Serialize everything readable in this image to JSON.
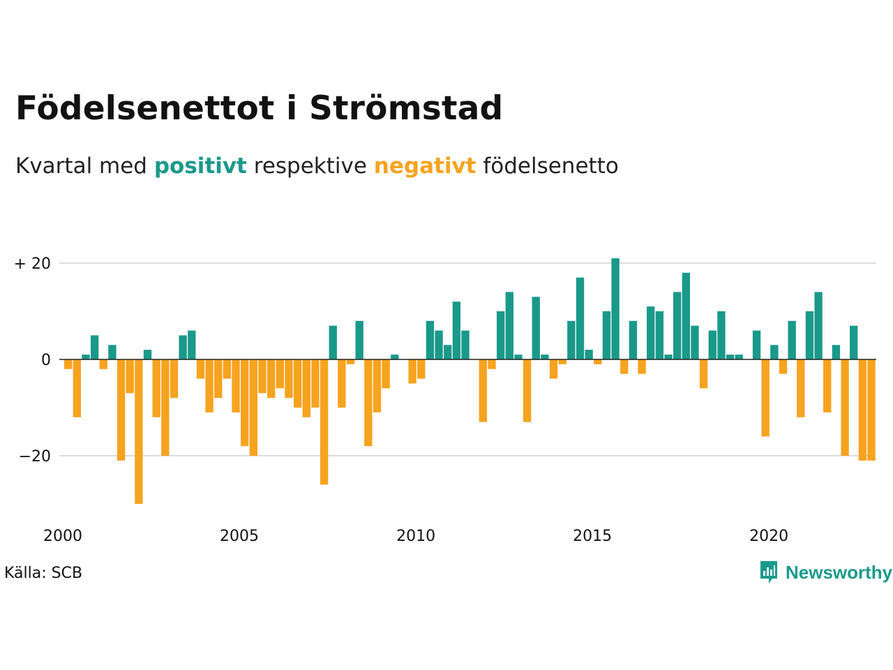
{
  "title": "Födelsenettot i Strömstad",
  "subtitle": {
    "prefix": "Kvartal med",
    "positive_word": "positivt",
    "middle": "respektive",
    "negative_word": "negativt",
    "suffix": "födelsenetto"
  },
  "colors": {
    "positive": "#1a998a",
    "negative": "#f6a31f",
    "grid": "#dcdcdc",
    "zero_line": "#222222",
    "brand": "#1a998a"
  },
  "source": "Källa: SCB",
  "brand": {
    "name": "Newsworthy",
    "icon": "bar-chart-speech-bubble-icon"
  },
  "chart_data": {
    "type": "bar",
    "title": "Födelsenettot i Strömstad",
    "subtitle": "Kvartal med positivt respektive negativt födelsenetto",
    "x_start": 2000,
    "x_step": 0.25,
    "xlim": [
      2000,
      2023
    ],
    "ylim": [
      -30,
      21
    ],
    "y_ticks": [
      {
        "value": 20,
        "label": "+ 20"
      },
      {
        "value": 0,
        "label": "0"
      },
      {
        "value": -20,
        "label": "−20"
      }
    ],
    "x_ticks": [
      {
        "value": 2000,
        "label": "2000"
      },
      {
        "value": 2005,
        "label": "2005"
      },
      {
        "value": 2010,
        "label": "2010"
      },
      {
        "value": 2015,
        "label": "2015"
      },
      {
        "value": 2020,
        "label": "2020"
      }
    ],
    "grid": true,
    "values": [
      -2,
      -12,
      1,
      5,
      -2,
      3,
      -21,
      -7,
      -30,
      2,
      -12,
      -20,
      -8,
      5,
      6,
      -4,
      -11,
      -8,
      -4,
      -11,
      -18,
      -20,
      -7,
      -8,
      -6,
      -8,
      -10,
      -12,
      -10,
      -26,
      7,
      -10,
      -1,
      8,
      -18,
      -11,
      -6,
      1,
      0,
      -5,
      -4,
      8,
      6,
      3,
      12,
      6,
      0,
      -13,
      -2,
      10,
      14,
      1,
      -13,
      13,
      1,
      -4,
      -1,
      8,
      17,
      2,
      -1,
      10,
      21,
      -3,
      8,
      -3,
      11,
      10,
      1,
      14,
      18,
      7,
      -6,
      6,
      10,
      1,
      1,
      0,
      6,
      -16,
      3,
      -3,
      8,
      -12,
      10,
      14,
      -11,
      3,
      -20,
      7,
      -21,
      -21
    ]
  }
}
